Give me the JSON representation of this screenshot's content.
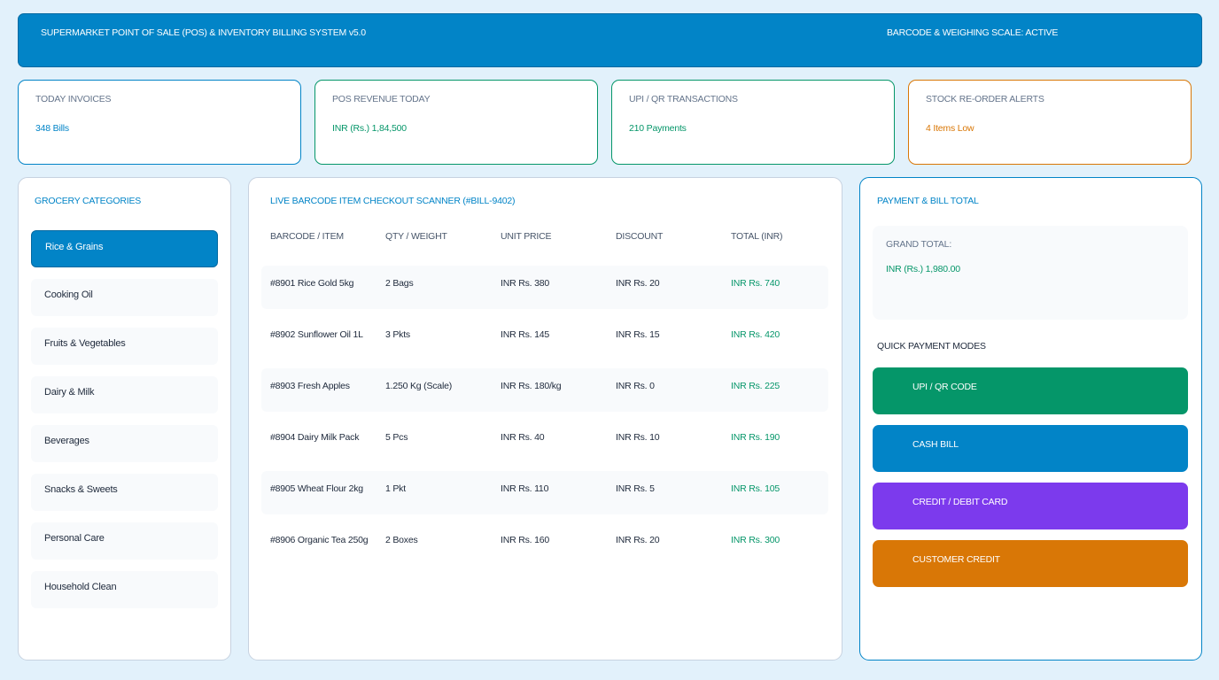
{
  "header": {
    "title": "SUPERMARKET POINT OF SALE (POS) & INVENTORY BILLING SYSTEM v5.0",
    "status": "BARCODE & WEIGHING SCALE: ACTIVE"
  },
  "stats": [
    {
      "label": "TODAY INVOICES",
      "value": "348 Bills"
    },
    {
      "label": "POS REVENUE TODAY",
      "value": "INR (Rs.) 1,84,500"
    },
    {
      "label": "UPI / QR TRANSACTIONS",
      "value": "210 Payments"
    },
    {
      "label": "STOCK RE-ORDER ALERTS",
      "value": "4 Items Low"
    }
  ],
  "categories": {
    "title": "GROCERY CATEGORIES",
    "items": [
      "Rice & Grains",
      "Cooking Oil",
      "Fruits & Vegetables",
      "Dairy & Milk",
      "Beverages",
      "Snacks & Sweets",
      "Personal Care",
      "Household Clean"
    ]
  },
  "scanner": {
    "title": "LIVE BARCODE ITEM CHECKOUT SCANNER (#BILL-9402)",
    "columns": [
      "BARCODE / ITEM",
      "QTY / WEIGHT",
      "UNIT PRICE",
      "DISCOUNT",
      "TOTAL (INR)"
    ],
    "rows": [
      [
        "#8901 Rice Gold 5kg",
        "2 Bags",
        "INR Rs. 380",
        "INR Rs. 20",
        "INR Rs. 740"
      ],
      [
        "#8902 Sunflower Oil 1L",
        "3 Pkts",
        "INR Rs. 145",
        "INR Rs. 15",
        "INR Rs. 420"
      ],
      [
        "#8903 Fresh Apples",
        "1.250 Kg (Scale)",
        "INR Rs. 180/kg",
        "INR Rs. 0",
        "INR Rs. 225"
      ],
      [
        "#8904 Dairy Milk Pack",
        "5 Pcs",
        "INR Rs. 40",
        "INR Rs. 10",
        "INR Rs. 190"
      ],
      [
        "#8905 Wheat Flour 2kg",
        "1 Pkt",
        "INR Rs. 110",
        "INR Rs. 5",
        "INR Rs. 105"
      ],
      [
        "#8906 Organic Tea 250g",
        "2 Boxes",
        "INR Rs. 160",
        "INR Rs. 20",
        "INR Rs. 300"
      ]
    ]
  },
  "payment": {
    "title": "PAYMENT & BILL TOTAL",
    "grand_label": "GRAND TOTAL:",
    "grand_value": "INR (Rs.) 1,980.00",
    "quick_label": "QUICK PAYMENT MODES",
    "modes": [
      {
        "label": "UPI / QR CODE",
        "color": "#059669"
      },
      {
        "label": "CASH BILL",
        "color": "#0284c7"
      },
      {
        "label": "CREDIT / DEBIT CARD",
        "color": "#7c3aed"
      },
      {
        "label": "CUSTOMER CREDIT",
        "color": "#d97706"
      }
    ]
  }
}
